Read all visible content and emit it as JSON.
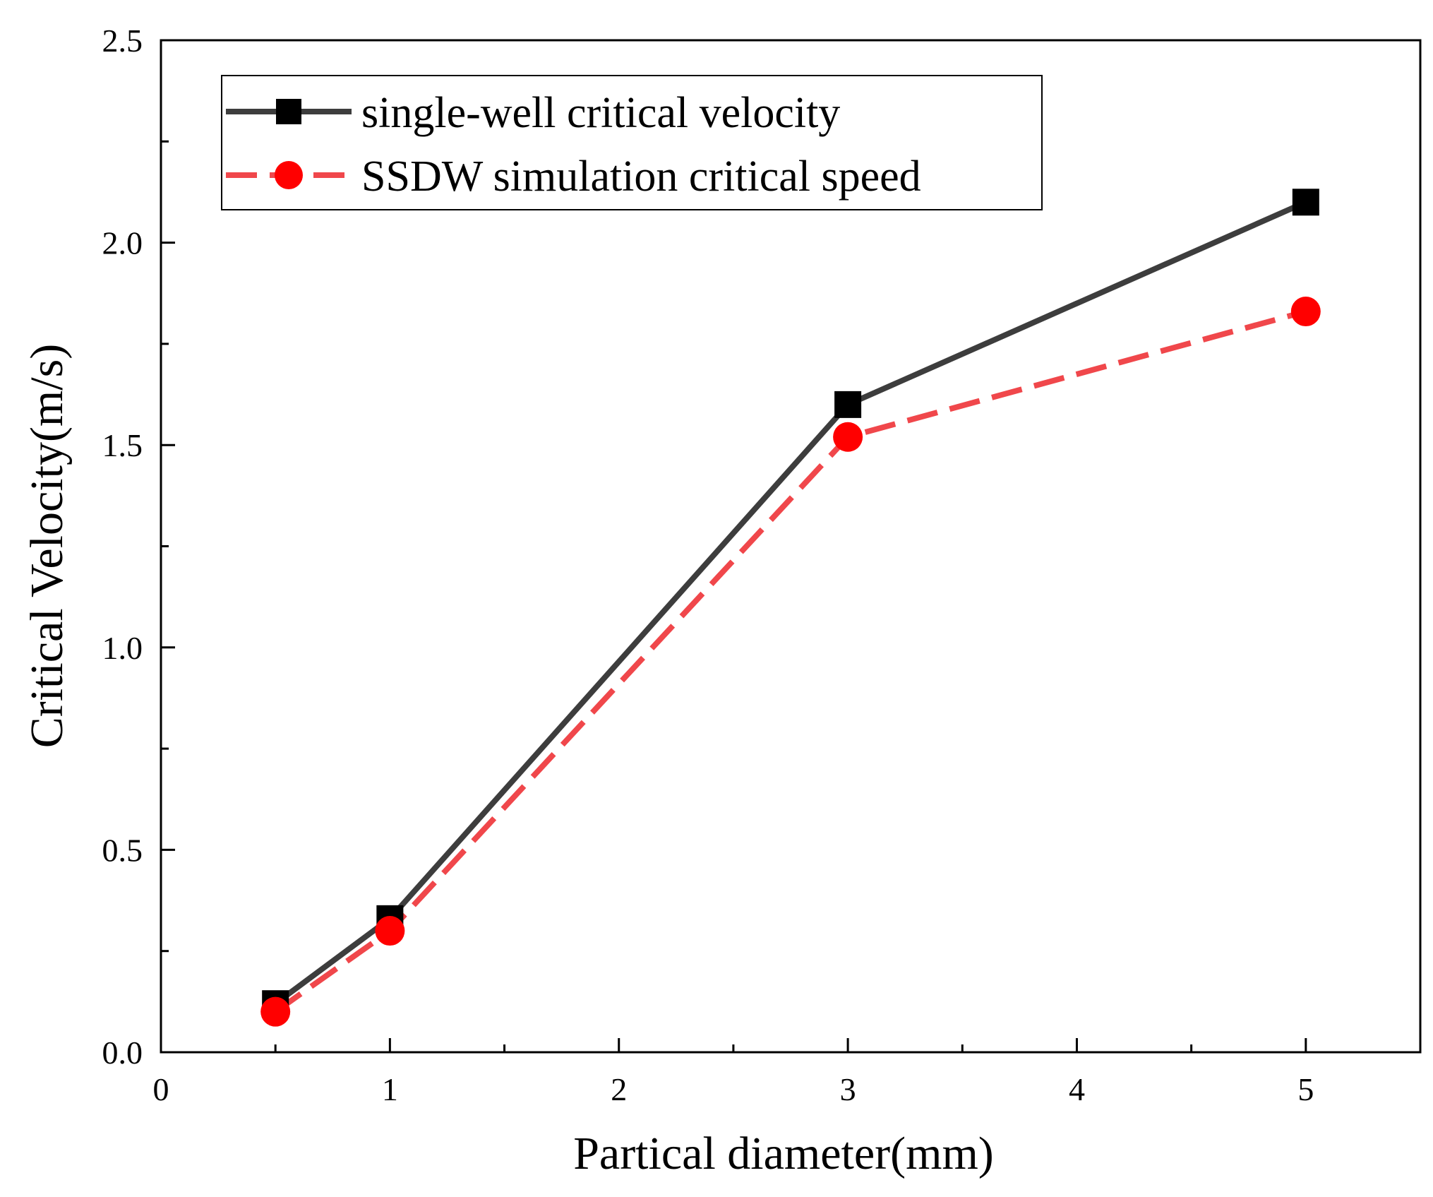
{
  "chart_data": {
    "type": "line",
    "title": "",
    "xlabel": "Partical diameter(mm)",
    "ylabel": "Critical Velocity(m/s)",
    "xlim": [
      0,
      5.5
    ],
    "ylim": [
      0,
      2.5
    ],
    "xticks": [
      0,
      1,
      2,
      3,
      4,
      5
    ],
    "xtick_labels": [
      "0",
      "1",
      "2",
      "3",
      "4",
      "5"
    ],
    "yticks": [
      0.0,
      0.5,
      1.0,
      1.5,
      2.0,
      2.5
    ],
    "ytick_labels": [
      "0.0",
      "0.5",
      "1.0",
      "1.5",
      "2.0",
      "2.5"
    ],
    "grid": false,
    "legend": "top-left",
    "series": [
      {
        "name": "single-well critical velocity",
        "color": "#3d3d3d",
        "marker": "square",
        "marker_color": "#000000",
        "line_style": "solid",
        "x": [
          0.5,
          1,
          3,
          5
        ],
        "y": [
          0.12,
          0.33,
          1.6,
          2.1
        ]
      },
      {
        "name": "SSDW simulation critical speed",
        "color": "#f0474b",
        "marker": "circle",
        "marker_color": "#ff0000",
        "line_style": "dashed",
        "x": [
          0.5,
          1,
          3,
          5
        ],
        "y": [
          0.1,
          0.3,
          1.52,
          1.83
        ]
      }
    ]
  }
}
